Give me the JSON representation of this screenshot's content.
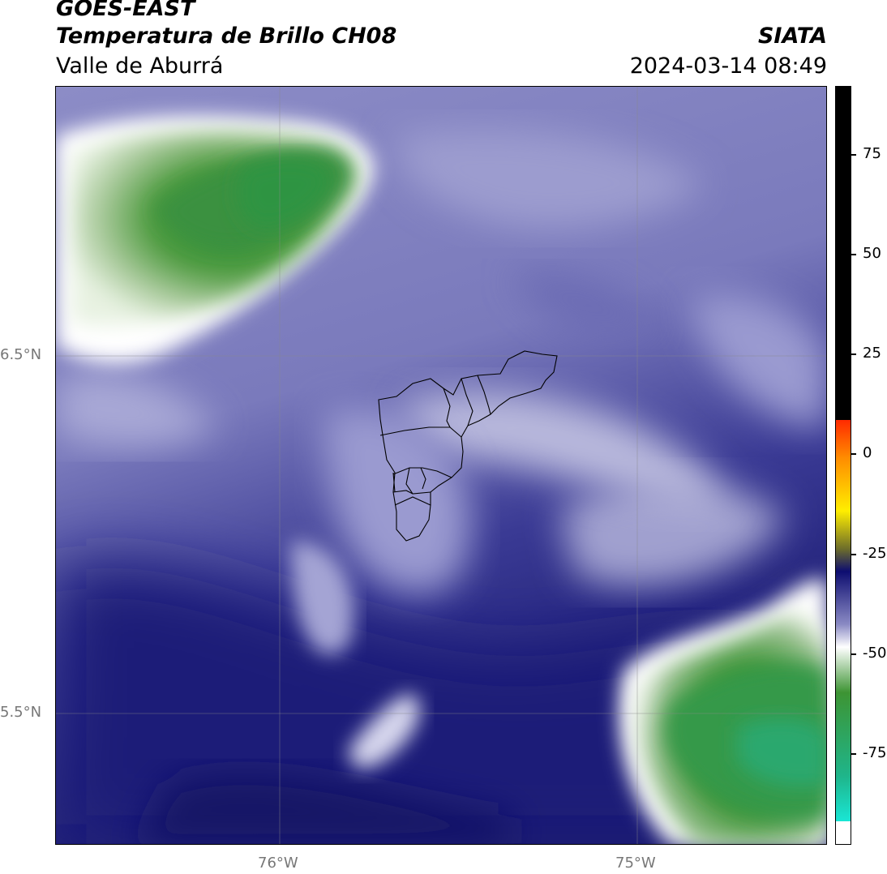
{
  "header": {
    "title_line1": "GOES-EAST",
    "title_line2": "Temperatura de Brillo CH08",
    "organization": "SIATA",
    "region": "Valle de Aburrá",
    "timestamp": "2024-03-14 08:49"
  },
  "map": {
    "lat_labels": [
      "6.5°N",
      "5.5°N"
    ],
    "lon_labels": [
      "76°W",
      "75°W"
    ]
  },
  "colorbar": {
    "ticks": [
      "75",
      "50",
      "25",
      "0",
      "-25",
      "-50",
      "-75"
    ],
    "colors": {
      "black": "#000000",
      "red": "#ff2a00",
      "orange": "#ff8c00",
      "yellow": "#ffee00",
      "olive": "#6e6e2a",
      "navy": "#0d0d70",
      "periwinkle": "#8a8ac4",
      "white": "#ffffff",
      "green": "#3d9433",
      "teal": "#1fb58a",
      "cyan": "#19e6d5"
    }
  }
}
